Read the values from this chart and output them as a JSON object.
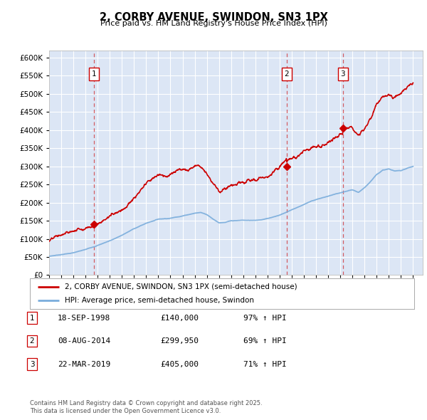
{
  "title": "2, CORBY AVENUE, SWINDON, SN3 1PX",
  "subtitle": "Price paid vs. HM Land Registry's House Price Index (HPI)",
  "background_color": "#dce6f5",
  "grid_color": "#c8d4e8",
  "red_line_color": "#cc0000",
  "blue_line_color": "#7aaddc",
  "sale_dates": [
    1998.72,
    2014.59,
    2019.22
  ],
  "sale_prices": [
    140000,
    299950,
    405000
  ],
  "sale_labels": [
    "1",
    "2",
    "3"
  ],
  "sale_annotations": [
    {
      "label": "1",
      "date": "18-SEP-1998",
      "price": "£140,000",
      "hpi": "97% ↑ HPI"
    },
    {
      "label": "2",
      "date": "08-AUG-2014",
      "price": "£299,950",
      "hpi": "69% ↑ HPI"
    },
    {
      "label": "3",
      "date": "22-MAR-2019",
      "price": "£405,000",
      "hpi": "71% ↑ HPI"
    }
  ],
  "legend_line1": "2, CORBY AVENUE, SWINDON, SN3 1PX (semi-detached house)",
  "legend_line2": "HPI: Average price, semi-detached house, Swindon",
  "footer": "Contains HM Land Registry data © Crown copyright and database right 2025.\nThis data is licensed under the Open Government Licence v3.0.",
  "ylim": [
    0,
    620000
  ],
  "yticks": [
    0,
    50000,
    100000,
    150000,
    200000,
    250000,
    300000,
    350000,
    400000,
    450000,
    500000,
    550000,
    600000
  ],
  "xlim_start": 1995.0,
  "xlim_end": 2025.8
}
